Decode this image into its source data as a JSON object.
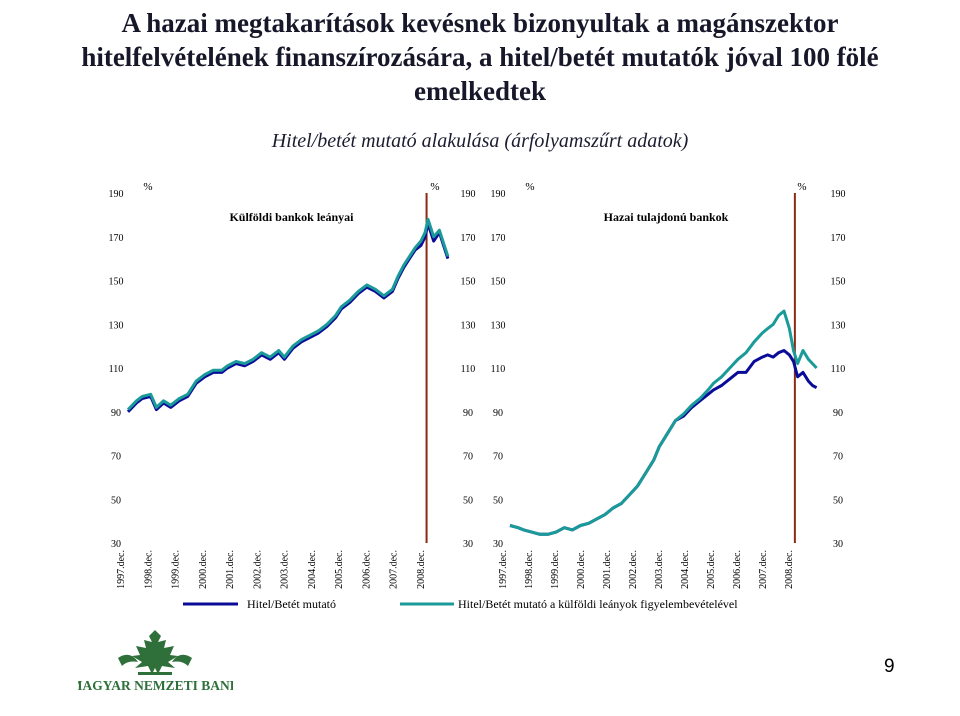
{
  "title": {
    "line1": "A hazai megtakarítások kevésnek bizonyultak a magánszektor",
    "line2": "hitelfelvételének finanszírozására, a hitel/betét mutatók jóval 100 fölé",
    "line3": "emelkedtek"
  },
  "subtitle": "Hitel/betét mutató alakulása (árfolyamszűrt adatok)",
  "legend": {
    "series1": "Hitel/Betét mutató",
    "series2": "Hitel/Betét mutató a külföldi leányok figyelembevételével"
  },
  "logo_text": "MAGYAR NEMZETI BANK",
  "page_number": "9",
  "colors": {
    "series1": "#0b0b9a",
    "series2": "#1a9a98",
    "marker": "#8b2a12"
  },
  "chart_data": [
    {
      "type": "line",
      "title": "Külföldi bankok leányai",
      "unit_left": "%",
      "unit_right": "%",
      "ylim": [
        30,
        190
      ],
      "yticks": [
        30,
        50,
        70,
        90,
        110,
        130,
        150,
        170,
        190
      ],
      "x_labels": [
        "1997.dec.",
        "1998.dec.",
        "1999.dec.",
        "2000.dec.",
        "2001.dec.",
        "2002.dec.",
        "2003.dec.",
        "2004.dec.",
        "2005.dec.",
        "2006.dec.",
        "2007.dec.",
        "2008.dec."
      ],
      "marker_x": 2008.0,
      "series": [
        {
          "name": "Hitel/Betét mutató",
          "x": [
            1997.5,
            1997.8,
            1998.0,
            1998.3,
            1998.5,
            1998.75,
            1999.0,
            1999.3,
            1999.6,
            1999.9,
            2000.2,
            2000.5,
            2000.8,
            2001.0,
            2001.3,
            2001.6,
            2001.9,
            2002.2,
            2002.5,
            2002.8,
            2003.0,
            2003.3,
            2003.6,
            2003.9,
            2004.2,
            2004.5,
            2004.8,
            2005.0,
            2005.3,
            2005.6,
            2005.9,
            2006.2,
            2006.5,
            2006.8,
            2007.0,
            2007.2,
            2007.4,
            2007.6,
            2007.8,
            2007.95,
            2008.05,
            2008.25,
            2008.45,
            2008.6,
            2008.75
          ],
          "values": [
            90,
            94,
            96,
            97,
            91,
            94,
            92,
            95,
            97,
            103,
            106,
            108,
            108,
            110,
            112,
            111,
            113,
            116,
            114,
            117,
            114,
            119,
            122,
            124,
            126,
            129,
            133,
            137,
            140,
            144,
            147,
            145,
            142,
            145,
            151,
            156,
            160,
            164,
            166,
            170,
            176,
            168,
            172,
            166,
            160
          ]
        },
        {
          "name": "Hitel/Betét mutató a külföldi leányok figyelembevételével",
          "x": [
            1997.5,
            1997.8,
            1998.0,
            1998.3,
            1998.5,
            1998.75,
            1999.0,
            1999.3,
            1999.6,
            1999.9,
            2000.2,
            2000.5,
            2000.8,
            2001.0,
            2001.3,
            2001.6,
            2001.9,
            2002.2,
            2002.5,
            2002.8,
            2003.0,
            2003.3,
            2003.6,
            2003.9,
            2004.2,
            2004.5,
            2004.8,
            2005.0,
            2005.3,
            2005.6,
            2005.9,
            2006.2,
            2006.5,
            2006.8,
            2007.0,
            2007.2,
            2007.4,
            2007.6,
            2007.8,
            2007.95,
            2008.05,
            2008.25,
            2008.45,
            2008.6,
            2008.75
          ],
          "values": [
            91,
            95,
            97,
            98,
            92,
            95,
            93,
            96,
            98,
            104,
            107,
            109,
            109,
            111,
            113,
            112,
            114,
            117,
            115,
            118,
            115,
            120,
            123,
            125,
            127,
            130,
            134,
            138,
            141,
            145,
            148,
            146,
            143,
            146,
            152,
            157,
            161,
            165,
            168,
            172,
            178,
            170,
            173,
            167,
            161
          ]
        }
      ]
    },
    {
      "type": "line",
      "title": "Hazai tulajdonú bankok",
      "unit_left": "%",
      "unit_right": "%",
      "ylim": [
        30,
        190
      ],
      "yticks": [
        30,
        50,
        70,
        90,
        110,
        130,
        150,
        170,
        190
      ],
      "x_labels": [
        "1997.dec.",
        "1998.dec.",
        "1999.dec.",
        "2000.dec.",
        "2001.dec.",
        "2002.dec.",
        "2003.dec.",
        "2004.dec.",
        "2005.dec.",
        "2006.dec.",
        "2007.dec.",
        "2008.dec."
      ],
      "marker_x": 2008.0,
      "series": [
        {
          "name": "Hitel/Betét mutató",
          "x": [
            1997.5,
            1997.8,
            1998.0,
            1998.3,
            1998.6,
            1998.9,
            1999.2,
            1999.5,
            1999.8,
            2000.1,
            2000.4,
            2000.7,
            2001.0,
            2001.3,
            2001.6,
            2001.9,
            2002.2,
            2002.5,
            2002.8,
            2003.0,
            2003.3,
            2003.6,
            2003.9,
            2004.2,
            2004.5,
            2004.8,
            2005.0,
            2005.3,
            2005.6,
            2005.9,
            2006.2,
            2006.5,
            2006.8,
            2007.0,
            2007.2,
            2007.4,
            2007.6,
            2007.8,
            2007.95,
            2008.1,
            2008.3,
            2008.5,
            2008.65,
            2008.8
          ],
          "values": [
            38,
            37,
            36,
            35,
            34,
            34,
            35,
            37,
            36,
            38,
            39,
            41,
            43,
            46,
            48,
            52,
            56,
            62,
            68,
            74,
            80,
            86,
            88,
            92,
            95,
            98,
            100,
            102,
            105,
            108,
            108,
            113,
            115,
            116,
            115,
            117,
            118,
            116,
            113,
            106,
            108,
            104,
            102,
            101
          ]
        },
        {
          "name": "Hitel/Betét mutató a külföldi leányok figyelembevételével",
          "x": [
            1997.5,
            1997.8,
            1998.0,
            1998.3,
            1998.6,
            1998.9,
            1999.2,
            1999.5,
            1999.8,
            2000.1,
            2000.4,
            2000.7,
            2001.0,
            2001.3,
            2001.6,
            2001.9,
            2002.2,
            2002.5,
            2002.8,
            2003.0,
            2003.3,
            2003.6,
            2003.9,
            2004.2,
            2004.5,
            2004.8,
            2005.0,
            2005.3,
            2005.6,
            2005.9,
            2006.2,
            2006.5,
            2006.8,
            2007.0,
            2007.2,
            2007.4,
            2007.6,
            2007.8,
            2007.95,
            2008.1,
            2008.3,
            2008.5,
            2008.65,
            2008.8
          ],
          "values": [
            38,
            37,
            36,
            35,
            34,
            34,
            35,
            37,
            36,
            38,
            39,
            41,
            43,
            46,
            48,
            52,
            56,
            62,
            68,
            74,
            80,
            86,
            89,
            93,
            96,
            100,
            103,
            106,
            110,
            114,
            117,
            122,
            126,
            128,
            130,
            134,
            136,
            128,
            118,
            112,
            118,
            114,
            112,
            110
          ]
        }
      ]
    }
  ]
}
